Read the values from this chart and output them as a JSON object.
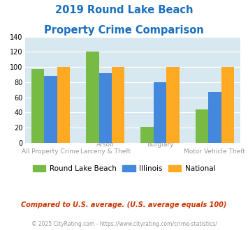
{
  "title_line1": "2019 Round Lake Beach",
  "title_line2": "Property Crime Comparison",
  "title_color": "#1a6fbd",
  "rlb_values": [
    97,
    120,
    21,
    44
  ],
  "il_values": [
    88,
    92,
    80,
    67
  ],
  "nat_values": [
    100,
    100,
    100,
    100
  ],
  "rlb_color": "#77bb44",
  "il_color": "#4488dd",
  "nat_color": "#ffaa22",
  "bg_color": "#d8e8f0",
  "ylim": [
    0,
    140
  ],
  "yticks": [
    0,
    20,
    40,
    60,
    80,
    100,
    120,
    140
  ],
  "legend_labels": [
    "Round Lake Beach",
    "Illinois",
    "National"
  ],
  "bottom_labels": [
    "All Property Crime",
    "Larceny & Theft",
    "",
    "Motor Vehicle Theft"
  ],
  "top_labels": [
    "",
    "Arson",
    "Burglary",
    ""
  ],
  "footnote1": "Compared to U.S. average. (U.S. average equals 100)",
  "footnote2": "© 2025 CityRating.com - https://www.cityrating.com/crime-statistics/",
  "footnote1_color": "#cc3300",
  "footnote2_color": "#999999"
}
